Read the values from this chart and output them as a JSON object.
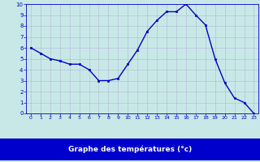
{
  "hours": [
    0,
    1,
    2,
    3,
    4,
    5,
    6,
    7,
    8,
    9,
    10,
    11,
    12,
    13,
    14,
    15,
    16,
    17,
    18,
    19,
    20,
    21,
    22,
    23
  ],
  "temperatures": [
    6.0,
    5.5,
    5.0,
    4.8,
    4.5,
    4.5,
    4.0,
    3.0,
    3.0,
    3.2,
    4.5,
    5.8,
    7.5,
    8.5,
    9.3,
    9.3,
    10.0,
    9.0,
    8.1,
    5.0,
    2.8,
    1.4,
    1.0,
    0.0
  ],
  "line_color": "#0000cc",
  "marker_color": "#0000cc",
  "bg_color": "#c8e8e8",
  "grid_color": "#aaaacc",
  "xlabel": "Graphe des températures (°c)",
  "xlabel_fg": "#ffffff",
  "xlabel_bg": "#0000cc",
  "tick_color": "#0000cc",
  "xlim": [
    -0.5,
    23.5
  ],
  "ylim": [
    0,
    10
  ],
  "yticks": [
    0,
    1,
    2,
    3,
    4,
    5,
    6,
    7,
    8,
    9,
    10
  ],
  "xticks": [
    0,
    1,
    2,
    3,
    4,
    5,
    6,
    7,
    8,
    9,
    10,
    11,
    12,
    13,
    14,
    15,
    16,
    17,
    18,
    19,
    20,
    21,
    22,
    23
  ]
}
